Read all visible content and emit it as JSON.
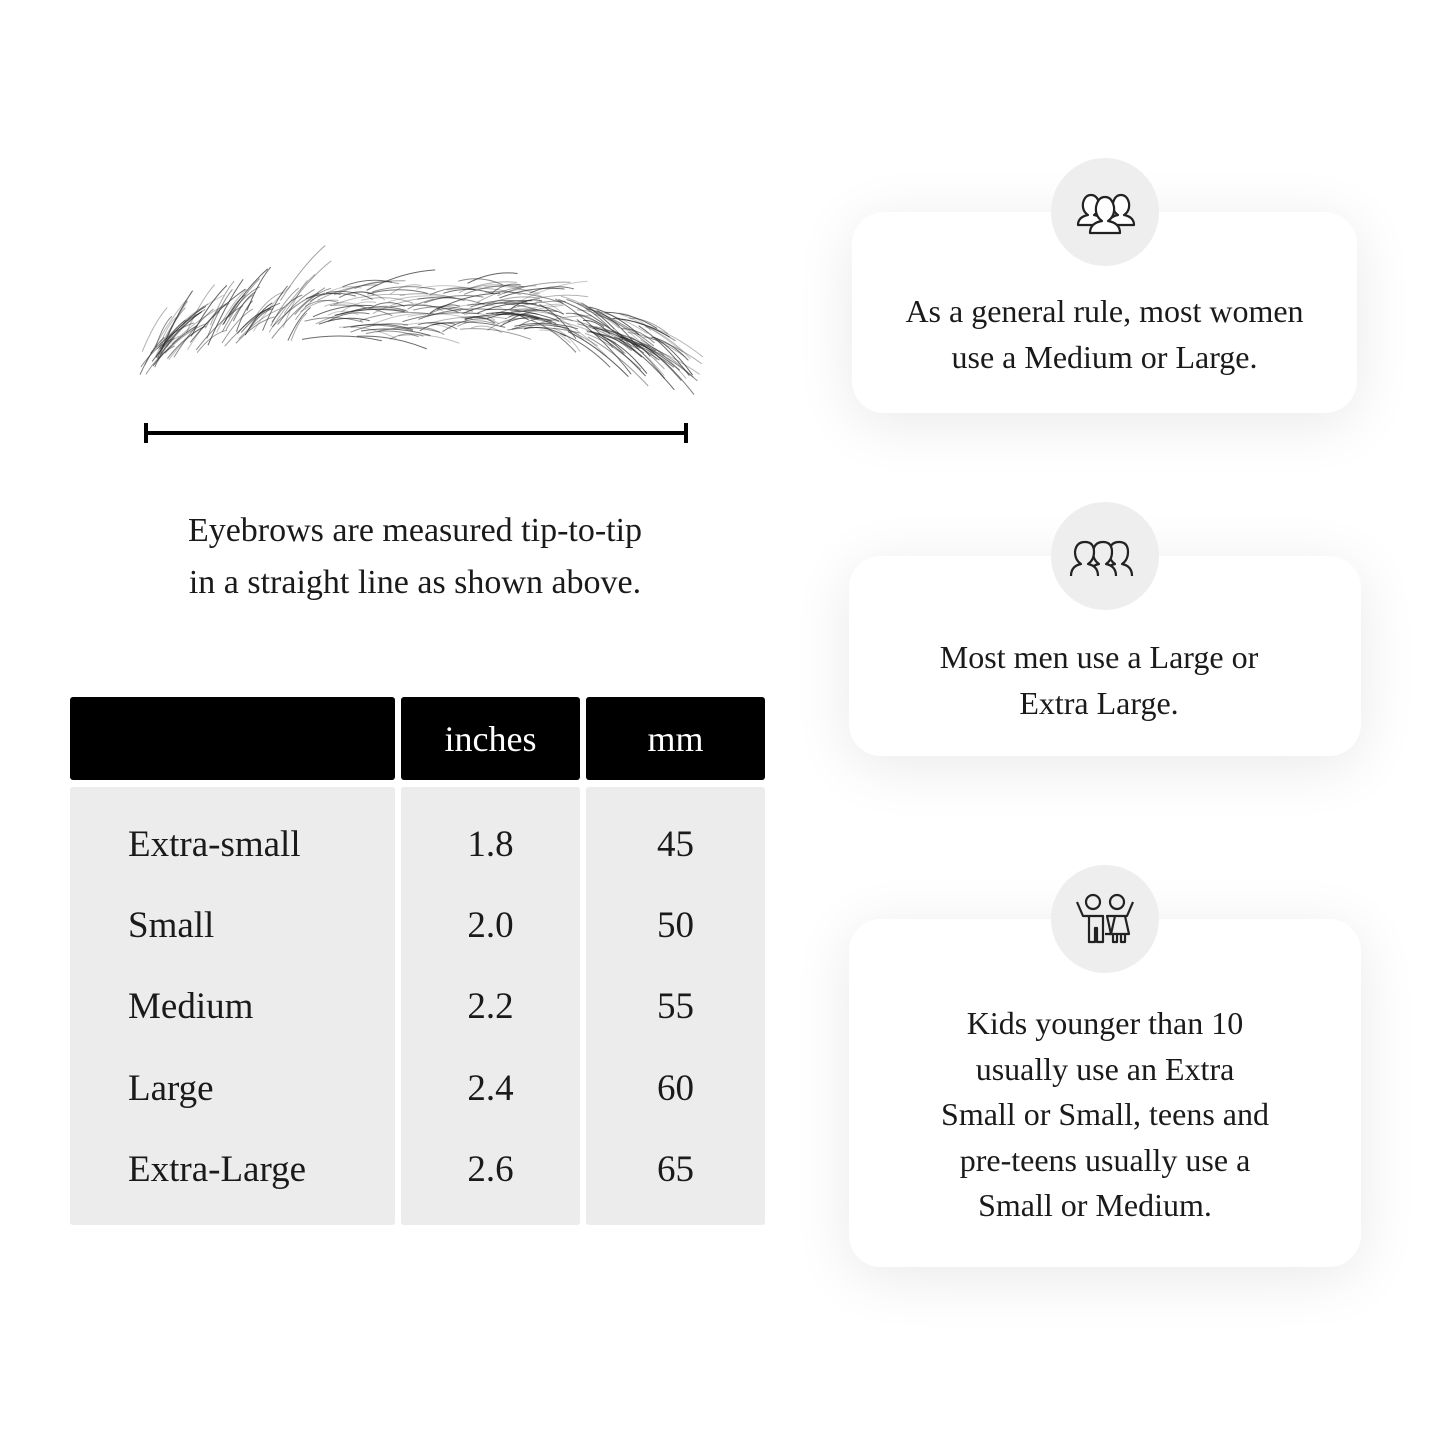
{
  "caption": {
    "line1": "Eyebrows are measured tip-to-tip",
    "line2": "in a straight line as shown above."
  },
  "table": {
    "headers": [
      "",
      "inches",
      "mm"
    ],
    "rows": [
      {
        "size": "Extra-small",
        "inches": "1.8",
        "mm": "45"
      },
      {
        "size": "Small",
        "inches": "2.0",
        "mm": "50"
      },
      {
        "size": "Medium",
        "inches": "2.2",
        "mm": "55"
      },
      {
        "size": "Large",
        "inches": "2.4",
        "mm": "60"
      },
      {
        "size": "Extra-Large",
        "inches": "2.6",
        "mm": "65"
      }
    ]
  },
  "cards": [
    {
      "icon": "women-group-icon",
      "lines": [
        "As a general rule, most women",
        "use a Medium or Large."
      ]
    },
    {
      "icon": "men-group-icon",
      "lines": [
        "Most men use a Large or",
        "Extra Large."
      ]
    },
    {
      "icon": "kids-icon",
      "lines": [
        "Kids younger than 10",
        "usually use an Extra",
        "Small or Small, teens and",
        "pre-teens usually use a",
        "Small or Medium."
      ]
    }
  ],
  "colors": {
    "header_bg": "#000000",
    "body_bg": "#ececec",
    "icon_circle": "#eeeeee"
  }
}
